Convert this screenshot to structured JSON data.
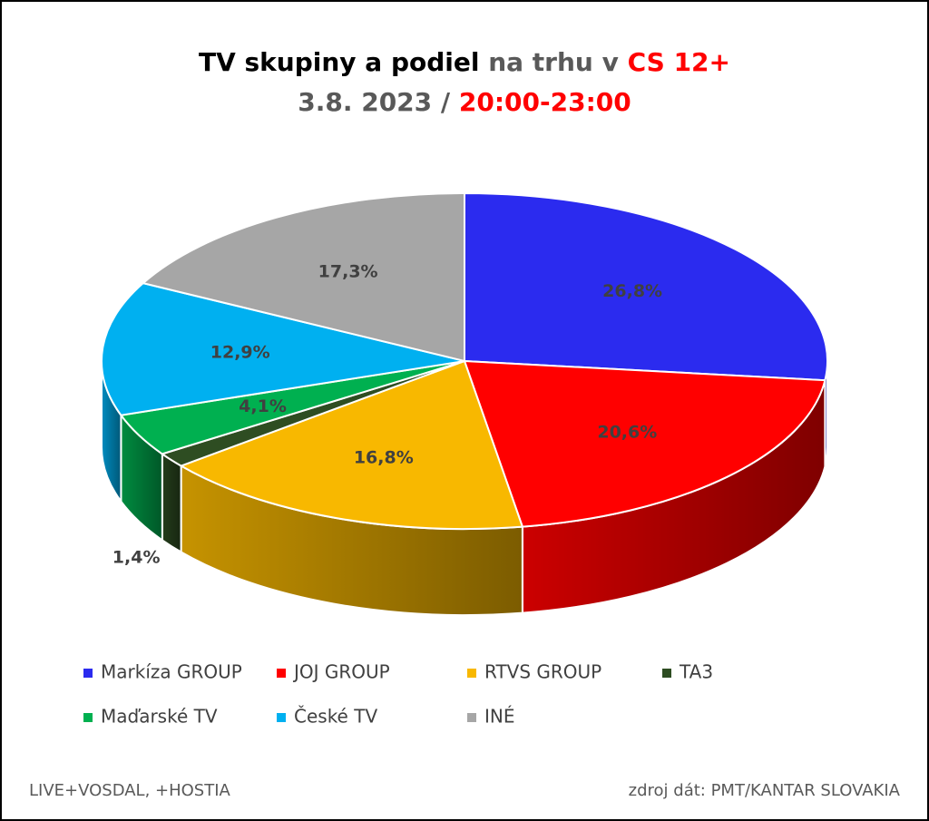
{
  "chart_data": {
    "type": "pie3d",
    "title": {
      "line1": [
        "TV skupiny a podiel",
        "na trhu v",
        "CS 12+"
      ],
      "line2": [
        "3.8. 2023 /",
        "20:00-23:00"
      ]
    },
    "categories": [
      "Markíza GROUP",
      "JOJ GROUP",
      "RTVS GROUP",
      "TA3",
      "Maďarské  TV",
      "České  TV",
      "INÉ"
    ],
    "values": [
      26.8,
      20.6,
      16.8,
      1.4,
      4.1,
      12.9,
      17.3
    ],
    "value_labels": [
      "26,8%",
      "20,6%",
      "16,8%",
      "1,4%",
      "4,1%",
      "12,9%",
      "17,3%"
    ],
    "colors": [
      "#2b2bef",
      "#ff0000",
      "#f8b800",
      "#2e4d22",
      "#00b050",
      "#00b0f0",
      "#a6a6a6"
    ],
    "legend": "bottom",
    "footer": {
      "left": "LIVE+VOSDAL, +HOSTIA",
      "right": "zdroj dát: PMT/KANTAR SLOVAKIA"
    }
  }
}
